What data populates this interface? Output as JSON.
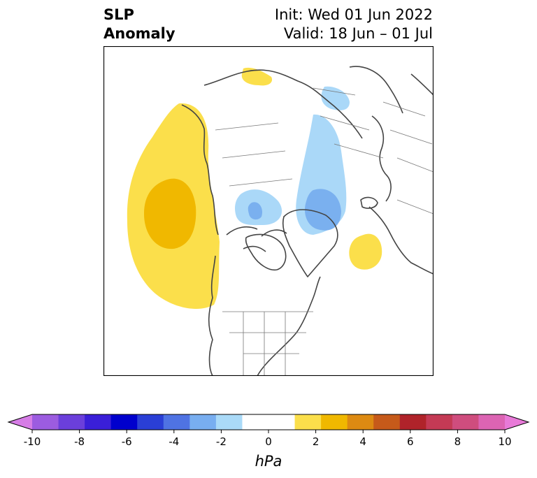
{
  "title": {
    "left_line1": "SLP",
    "left_line2": "Anomaly",
    "right_line1": "Init: Wed 01 Jun 2022",
    "right_line2": "Valid: 18 Jun – 01 Jul"
  },
  "map": {
    "projection": "north polar stereographic",
    "anomaly_regions": [
      {
        "name": "north-pacific-high",
        "value": 2,
        "color": "#fbdf4b"
      },
      {
        "name": "north-pacific-high-core",
        "value": 3,
        "color": "#f0b800"
      },
      {
        "name": "siberia-high",
        "value": 2,
        "color": "#fbdf4b"
      },
      {
        "name": "eurasia-low",
        "value": -2,
        "color": "#aad8f8"
      },
      {
        "name": "arctic-low",
        "value": -2,
        "color": "#aad8f8"
      },
      {
        "name": "arctic-low-core",
        "value": -3,
        "color": "#7ab0ef"
      },
      {
        "name": "greenland-low",
        "value": -2,
        "color": "#aad8f8"
      },
      {
        "name": "greenland-low-core",
        "value": -3,
        "color": "#7ab0ef"
      },
      {
        "name": "atlantic-high",
        "value": 2,
        "color": "#fbdf4b"
      }
    ]
  },
  "colorbar": {
    "unit": "hPa",
    "ticks": [
      "-10",
      "-8",
      "-6",
      "-4",
      "-2",
      "0",
      "2",
      "4",
      "6",
      "8",
      "10"
    ],
    "under_color": "#d67de6",
    "over_color": "#e87ad8",
    "colors": [
      "#9c5ce0",
      "#6b3fdb",
      "#3a1fd8",
      "#0000cd",
      "#2a3fd6",
      "#4f73e3",
      "#78aef0",
      "#aadaf8",
      "#ffffff",
      "#ffffff",
      "#fbdf4b",
      "#f0b800",
      "#dd8a12",
      "#c65a1a",
      "#b0232a",
      "#c43a55",
      "#cf4d7e",
      "#dc64b3"
    ]
  }
}
